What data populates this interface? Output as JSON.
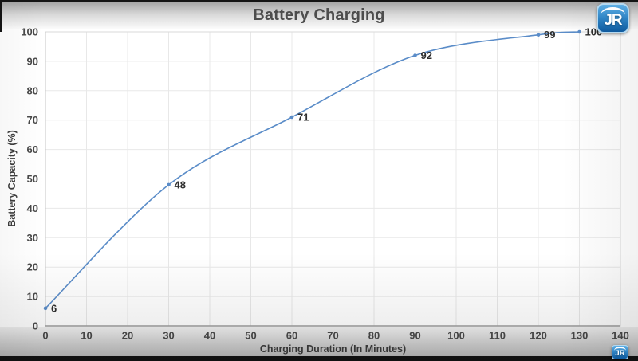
{
  "header": {
    "title": "Battery Charging"
  },
  "logo": {
    "text": "JR"
  },
  "colors": {
    "line": "#5a8cc8",
    "grid": "#e8e8e8",
    "plot_border": "#dadada",
    "axis": "#9e9e9e",
    "left_axis": "#c6c6c6",
    "tick_text": "#4a4a4a",
    "point_label_text": "#2e2e2e",
    "title_text": "#4d4d4d",
    "logo_blue": "#2e83c4"
  },
  "chart_data": {
    "type": "line",
    "title": "Battery Charging",
    "xlabel": "Charging Duration (In Minutes)",
    "ylabel": "Battery Capacity (%)",
    "x": [
      0,
      30,
      60,
      90,
      120,
      130
    ],
    "y": [
      6,
      48,
      71,
      92,
      99,
      100
    ],
    "point_labels": [
      "6",
      "48",
      "71",
      "92",
      "99",
      "100"
    ],
    "xlim": [
      0,
      140
    ],
    "ylim": [
      0,
      100
    ],
    "x_ticks": [
      0,
      10,
      20,
      30,
      40,
      50,
      60,
      70,
      80,
      90,
      100,
      110,
      120,
      130,
      140
    ],
    "y_ticks": [
      0,
      10,
      20,
      30,
      40,
      50,
      60,
      70,
      80,
      90,
      100
    ],
    "grid": true,
    "smooth": true,
    "legend_position": "none"
  }
}
